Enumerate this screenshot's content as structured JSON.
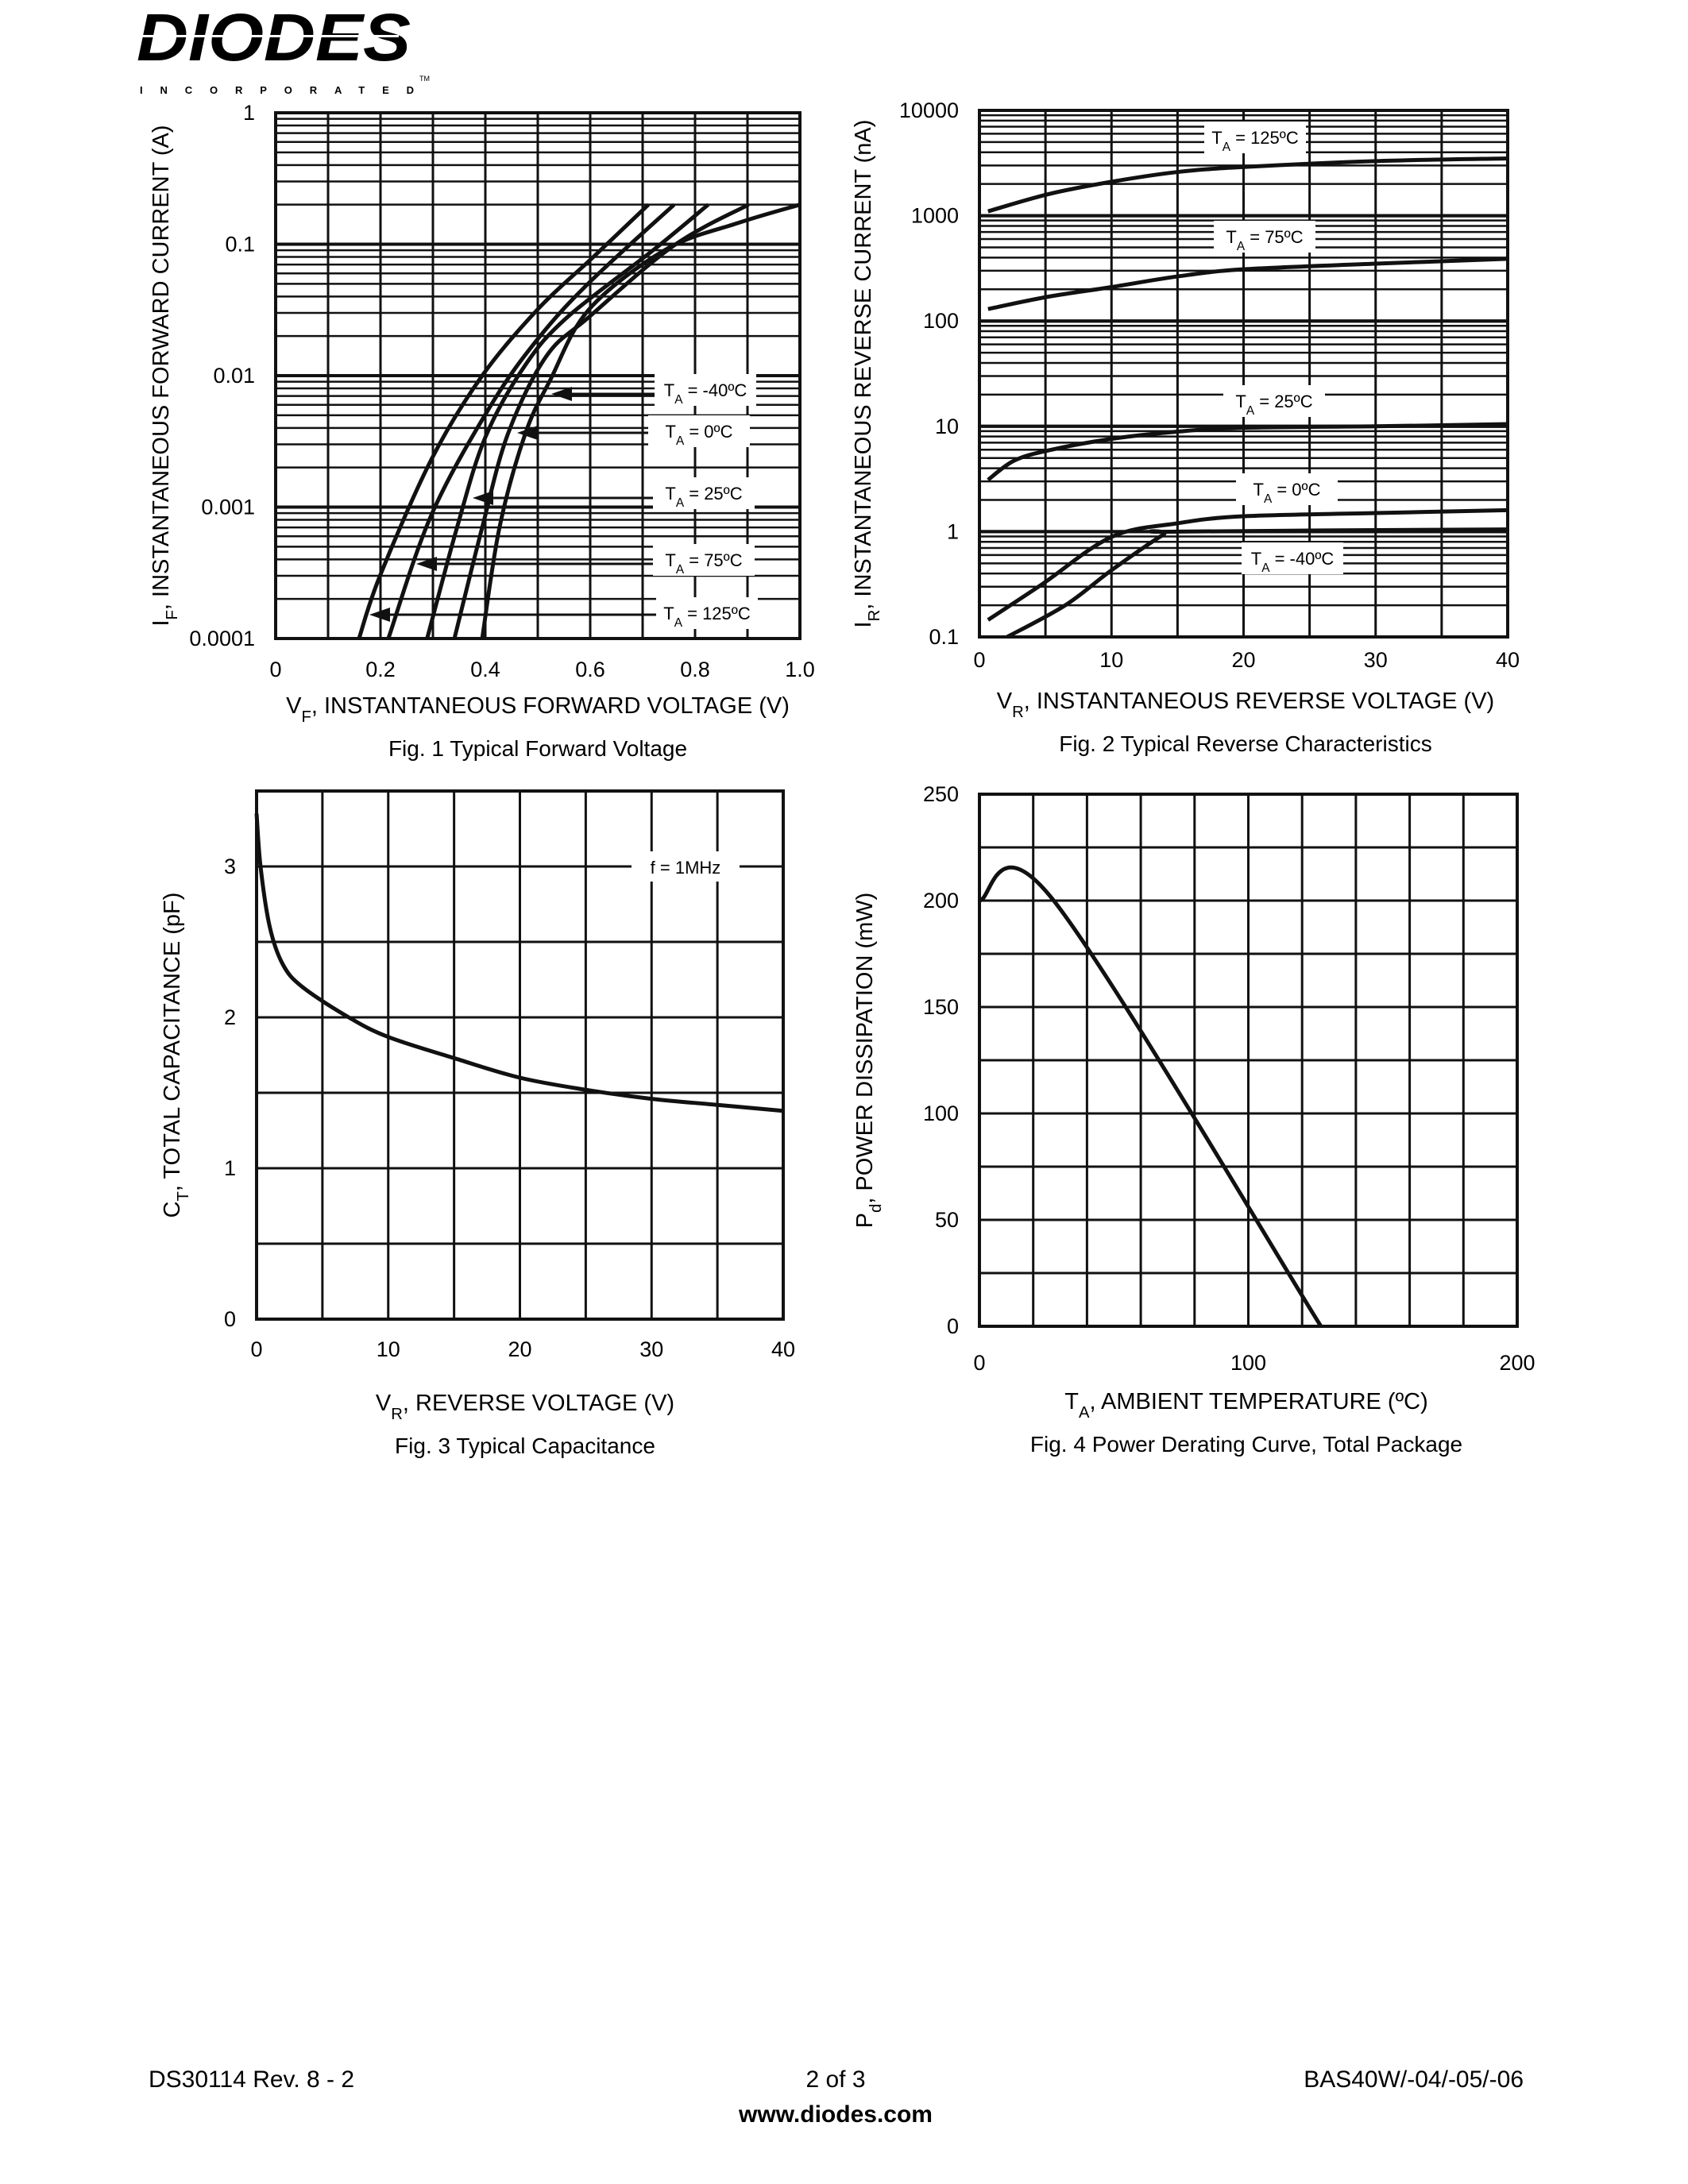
{
  "logo": {
    "name": "DIODES",
    "sub": "INCORPORATED",
    "tm": "TM"
  },
  "footer": {
    "left": "DS30114 Rev. 8 - 2",
    "center": "2 of 3",
    "right": "BAS40W/-04/-05/-06",
    "url": "www.diodes.com"
  },
  "chart_data": [
    {
      "type": "line",
      "title": "Fig. 1  Typical Forward Voltage",
      "xlabel": {
        "main": "V",
        "sub": "F",
        "rest": ", INSTANTANEOUS FORWARD VOLTAGE (V)"
      },
      "ylabel": {
        "main": "I",
        "sub": "F",
        "rest": ", INSTANTANEOUS FORWARD CURRENT (A)"
      },
      "xlim": [
        0,
        1.0
      ],
      "ylim": [
        0.0001,
        1
      ],
      "yscale": "log",
      "grid": true,
      "x_ticks": [
        0,
        0.2,
        0.4,
        0.6,
        0.8,
        1.0
      ],
      "x_tick_labels": [
        "0",
        "0.2",
        "0.4",
        "0.6",
        "0.8",
        "1.0"
      ],
      "y_ticks": [
        1,
        0.1,
        0.01,
        0.001,
        0.0001
      ],
      "y_tick_labels": [
        "1",
        "0.1",
        "0.01",
        "0.001",
        "0.0001"
      ],
      "series": [
        {
          "label": {
            "main": "T",
            "sub": "A",
            "rest": " = -40ºC"
          },
          "points": [
            [
              0.394,
              0.0001
            ],
            [
              0.427,
              0.0007
            ],
            [
              0.476,
              0.0036
            ],
            [
              0.524,
              0.0093
            ],
            [
              0.598,
              0.032
            ],
            [
              0.744,
              0.091
            ],
            [
              0.882,
              0.145
            ],
            [
              1.0,
              0.2
            ]
          ]
        },
        {
          "label": {
            "main": "T",
            "sub": "A",
            "rest": " = 0ºC"
          },
          "points": [
            [
              0.341,
              0.0001
            ],
            [
              0.394,
              0.0007
            ],
            [
              0.443,
              0.0036
            ],
            [
              0.516,
              0.014
            ],
            [
              0.598,
              0.028
            ],
            [
              0.76,
              0.098
            ],
            [
              0.902,
              0.2
            ]
          ]
        },
        {
          "label": {
            "main": "T",
            "sub": "A",
            "rest": " = 25ºC"
          },
          "points": [
            [
              0.289,
              0.0001
            ],
            [
              0.346,
              0.0007
            ],
            [
              0.4,
              0.0034
            ],
            [
              0.476,
              0.012
            ],
            [
              0.557,
              0.028
            ],
            [
              0.72,
              0.09
            ],
            [
              0.825,
              0.2
            ]
          ]
        },
        {
          "label": {
            "main": "T",
            "sub": "A",
            "rest": " = 75ºC"
          },
          "points": [
            [
              0.215,
              0.0001
            ],
            [
              0.297,
              0.00087
            ],
            [
              0.41,
              0.0059
            ],
            [
              0.5,
              0.019
            ],
            [
              0.598,
              0.051
            ],
            [
              0.76,
              0.2
            ]
          ]
        },
        {
          "label": {
            "main": "T",
            "sub": "A",
            "rest": " = 125ºC"
          },
          "points": [
            [
              0.159,
              0.0001
            ],
            [
              0.199,
              0.0003
            ],
            [
              0.297,
              0.0023
            ],
            [
              0.394,
              0.01
            ],
            [
              0.5,
              0.032
            ],
            [
              0.606,
              0.08
            ],
            [
              0.711,
              0.2
            ]
          ]
        }
      ]
    },
    {
      "type": "line",
      "title": "Fig. 2  Typical Reverse Characteristics",
      "xlabel": {
        "main": "V",
        "sub": "R",
        "rest": ", INSTANTANEOUS REVERSE VOLTAGE (V)"
      },
      "ylabel": {
        "main": "I",
        "sub": "R",
        "rest": ", INSTANTANEOUS REVERSE CURRENT (nA)"
      },
      "xlim": [
        0,
        40
      ],
      "ylim": [
        0.1,
        10000
      ],
      "yscale": "log",
      "grid": true,
      "x_ticks": [
        0,
        10,
        20,
        30,
        40
      ],
      "x_tick_labels": [
        "0",
        "10",
        "20",
        "30",
        "40"
      ],
      "y_ticks": [
        10000,
        1000,
        100,
        10,
        1,
        0.1
      ],
      "y_tick_labels": [
        "10000",
        "1000",
        "100",
        "10",
        "1",
        "0.1"
      ],
      "series": [
        {
          "label": {
            "main": "T",
            "sub": "A",
            "rest": " = 125ºC"
          },
          "points": [
            [
              0.65,
              1100
            ],
            [
              5.2,
              1600
            ],
            [
              10,
              2100
            ],
            [
              15,
              2600
            ],
            [
              20,
              2900
            ],
            [
              30,
              3300
            ],
            [
              40,
              3500
            ]
          ]
        },
        {
          "label": {
            "main": "T",
            "sub": "A",
            "rest": " = 75ºC"
          },
          "points": [
            [
              0.65,
              130
            ],
            [
              5.2,
              170
            ],
            [
              10,
              210
            ],
            [
              15,
              265
            ],
            [
              20,
              310
            ],
            [
              30,
              350
            ],
            [
              40,
              390
            ]
          ]
        },
        {
          "label": {
            "main": "T",
            "sub": "A",
            "rest": " = 25ºC"
          },
          "points": [
            [
              0.65,
              3.1
            ],
            [
              2.6,
              4.7
            ],
            [
              5.2,
              5.9
            ],
            [
              10,
              7.6
            ],
            [
              15,
              8.9
            ],
            [
              20,
              9.7
            ],
            [
              30,
              10
            ],
            [
              40,
              10.5
            ]
          ]
        },
        {
          "label": {
            "main": "T",
            "sub": "A",
            "rest": " = 0ºC"
          },
          "points": [
            [
              0.65,
              0.145
            ],
            [
              4.8,
              0.32
            ],
            [
              10,
              0.89
            ],
            [
              15,
              1.2
            ],
            [
              20,
              1.4
            ],
            [
              30,
              1.5
            ],
            [
              40,
              1.6
            ]
          ]
        },
        {
          "label": {
            "main": "T",
            "sub": "A",
            "rest": " = -40ºC"
          },
          "points": [
            [
              2.1,
              0.1
            ],
            [
              6.5,
              0.2
            ],
            [
              10,
              0.43
            ],
            [
              13.9,
              0.93
            ],
            [
              15,
              1.0
            ],
            [
              40,
              1.05
            ]
          ]
        }
      ]
    },
    {
      "type": "line",
      "title": "Fig. 3  Typical Capacitance",
      "xlabel": {
        "main": "V",
        "sub": "R",
        "rest": ", REVERSE VOLTAGE (V)"
      },
      "ylabel": {
        "main": "C",
        "sub": "T",
        "rest": ", TOTAL CAPACITANCE (pF)"
      },
      "xlim": [
        0,
        40
      ],
      "ylim": [
        0,
        3.5
      ],
      "yscale": "linear",
      "grid": true,
      "x_ticks": [
        0,
        10,
        20,
        30,
        40
      ],
      "x_tick_labels": [
        "0",
        "10",
        "20",
        "30",
        "40"
      ],
      "y_ticks": [
        0,
        1,
        2,
        3
      ],
      "y_tick_labels": [
        "0",
        "1",
        "2",
        "3"
      ],
      "annotation": "f = 1MHz",
      "series": [
        {
          "points": [
            [
              0,
              3.35
            ],
            [
              0.3,
              3.0
            ],
            [
              1,
              2.6
            ],
            [
              2,
              2.35
            ],
            [
              3.5,
              2.2
            ],
            [
              7,
              2.0
            ],
            [
              10,
              1.87
            ],
            [
              15,
              1.73
            ],
            [
              20,
              1.6
            ],
            [
              25,
              1.52
            ],
            [
              30,
              1.46
            ],
            [
              35,
              1.42
            ],
            [
              40,
              1.38
            ]
          ]
        }
      ]
    },
    {
      "type": "line",
      "title": "Fig. 4  Power Derating Curve, Total Package",
      "xlabel": {
        "main": "T",
        "sub": "A",
        "rest": ", AMBIENT TEMPERATURE (ºC)"
      },
      "ylabel": {
        "main": "P",
        "sub": "d",
        "rest": ", POWER DISSIPATION (mW)"
      },
      "xlim": [
        0,
        200
      ],
      "ylim": [
        0,
        250
      ],
      "yscale": "linear",
      "grid": true,
      "x_ticks": [
        0,
        100,
        200
      ],
      "x_tick_labels": [
        "0",
        "100",
        "200"
      ],
      "y_ticks": [
        0,
        50,
        100,
        150,
        200,
        250
      ],
      "y_tick_labels": [
        "0",
        "50",
        "100",
        "150",
        "200",
        "250"
      ],
      "series": [
        {
          "points": [
            [
              0,
              200
            ],
            [
              27,
              201
            ],
            [
              127,
              0
            ]
          ]
        }
      ]
    }
  ]
}
